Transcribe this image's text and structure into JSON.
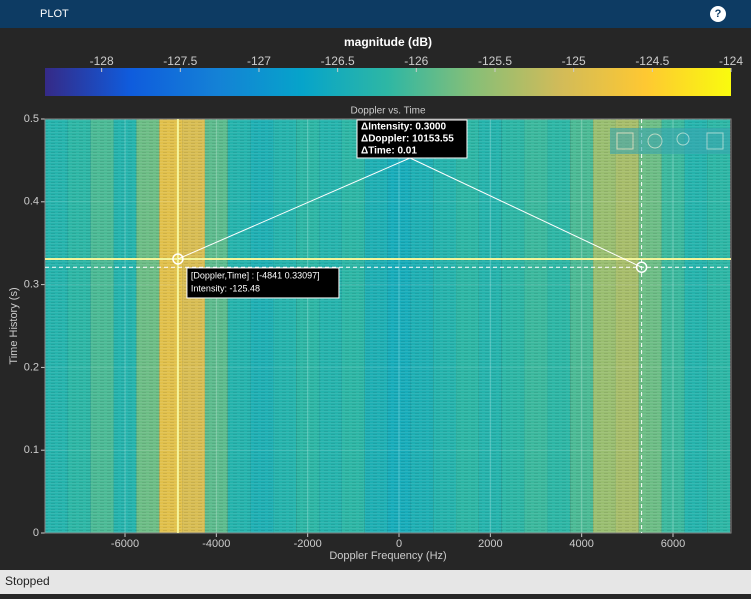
{
  "ui": {
    "header": "PLOT",
    "help": "?",
    "status": "Stopped"
  },
  "chart_data": {
    "type": "heatmap",
    "title": "Doppler vs. Time",
    "xlabel": "Doppler Frequency (Hz)",
    "ylabel": "Time History (s)",
    "colorbar_title": "magnitude (dB)",
    "x_edges": [
      -7750,
      -7250,
      -6750,
      -6250,
      -5750,
      -5250,
      -4750,
      -4250,
      -3750,
      -3250,
      -2750,
      -2250,
      -1750,
      -1250,
      -750,
      -250,
      250,
      750,
      1250,
      1750,
      2250,
      2750,
      3250,
      3750,
      4250,
      4750,
      5250,
      5750,
      6250,
      6750,
      7250
    ],
    "values": [
      -126.3,
      -126.2,
      -126.0,
      -126.3,
      -125.8,
      -124.9,
      -125.0,
      -125.9,
      -126.3,
      -126.4,
      -126.3,
      -126.2,
      -126.3,
      -126.2,
      -126.4,
      -126.5,
      -126.4,
      -126.3,
      -126.2,
      -126.3,
      -126.2,
      -126.1,
      -126.2,
      -126.0,
      -125.5,
      -125.4,
      -125.8,
      -126.1,
      -126.3,
      -126.2
    ],
    "xlim": [
      -7752,
      7270
    ],
    "xticks": [
      -6000,
      -4000,
      -2000,
      0,
      2000,
      4000,
      6000
    ],
    "ylim": [
      0,
      0.5
    ],
    "yticks": [
      0,
      0.1,
      0.2,
      0.3,
      0.4,
      0.5
    ],
    "clim": [
      -128.36,
      -124
    ],
    "cticks": [
      -128,
      -127.5,
      -127,
      -126.5,
      -126,
      -125.5,
      -125,
      -124.5,
      -124
    ],
    "colormap": [
      "#352a87",
      "#0f5cdd",
      "#1481d6",
      "#06a4ca",
      "#2eb7a4",
      "#87bf77",
      "#d1bb59",
      "#fec832",
      "#f9fb0e"
    ],
    "grid": true,
    "cursors": [
      {
        "x": -4841,
        "y": 0.33097
      },
      {
        "x": 5312.55,
        "y": 0.32097
      }
    ],
    "datatip": [
      "[Doppler,Time] : [-4841 0.33097]",
      "Intensity: -125.48"
    ],
    "delta_tip": [
      "ΔIntensity: 0.3000",
      "ΔDoppler: 10153.55",
      "ΔTime: 0.01"
    ]
  }
}
